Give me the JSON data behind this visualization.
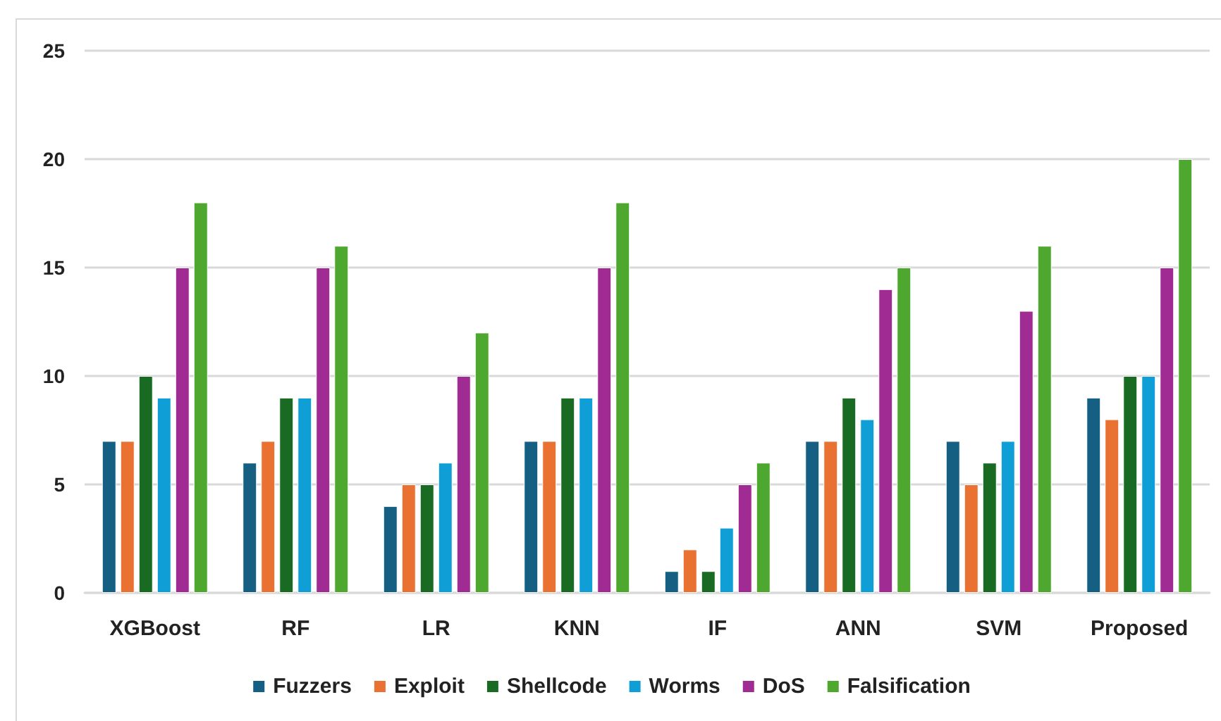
{
  "chart_data": {
    "type": "bar",
    "categories": [
      "XGBoost",
      "RF",
      "LR",
      "KNN",
      "IF",
      "ANN",
      "SVM",
      "Proposed"
    ],
    "series": [
      {
        "name": "Fuzzers",
        "color": "#156082",
        "values": [
          7,
          6,
          4,
          7,
          1,
          7,
          7,
          9
        ]
      },
      {
        "name": "Exploit",
        "color": "#e97132",
        "values": [
          7,
          7,
          5,
          7,
          2,
          7,
          5,
          8
        ]
      },
      {
        "name": "Shellcode",
        "color": "#196b24",
        "values": [
          10,
          9,
          5,
          9,
          1,
          9,
          6,
          10
        ]
      },
      {
        "name": "Worms",
        "color": "#0f9ed5",
        "values": [
          9,
          9,
          6,
          9,
          3,
          8,
          7,
          10
        ]
      },
      {
        "name": "DoS",
        "color": "#a02b93",
        "values": [
          15,
          15,
          10,
          15,
          5,
          14,
          13,
          15
        ]
      },
      {
        "name": "Falsification",
        "color": "#4ea72e",
        "values": [
          18,
          16,
          12,
          18,
          6,
          15,
          16,
          20
        ]
      }
    ],
    "ylim": [
      0,
      25
    ],
    "yticks": [
      0,
      5,
      10,
      15,
      20,
      25
    ],
    "grid": "y",
    "legend": "bottom"
  }
}
